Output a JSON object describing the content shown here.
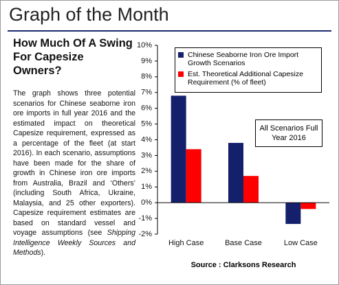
{
  "header": {
    "title": "Graph of the Month"
  },
  "article": {
    "heading": "How Much Of A Swing For Capesize Owners?",
    "body": [
      "The graph shows three potential scenarios for Chinese seaborne iron ore imports in full year 2016 and the estimated impact on theoretical Capesize requirement, expressed as a percentage of the fleet (at start 2016). In each scenario, assumptions have been made for the share of growth in Chinese iron ore imports from Australia, Brazil and ‘Others’ (including South Africa, Ukraine, Malaysia, and 25 other exporters). Capesize requirement estimates are based on standard vessel and voyage assumptions (see ",
      "Shipping Intelligence Weekly Sources and Methods",
      ")."
    ]
  },
  "chart_data": {
    "type": "bar",
    "categories": [
      "High Case",
      "Base Case",
      "Low Case"
    ],
    "series": [
      {
        "name": "Chinese Seaborne Iron Ore Import Growth Scenarios",
        "color": "#14206b",
        "values": [
          6.8,
          3.8,
          -1.35
        ]
      },
      {
        "name": "Est. Theoretical Additional Capesize Requirement (% of fleet)",
        "color": "#ff0000",
        "values": [
          3.4,
          1.7,
          -0.4
        ]
      }
    ],
    "ylim": [
      -2,
      10
    ],
    "yticks": [
      {
        "value": -2,
        "label": "-2%"
      },
      {
        "value": -1,
        "label": "-1%"
      },
      {
        "value": 0,
        "label": "0%"
      },
      {
        "value": 1,
        "label": "1%"
      },
      {
        "value": 2,
        "label": "2%"
      },
      {
        "value": 3,
        "label": "3%"
      },
      {
        "value": 4,
        "label": "4%"
      },
      {
        "value": 5,
        "label": "5%"
      },
      {
        "value": 6,
        "label": "6%"
      },
      {
        "value": 7,
        "label": "7%"
      },
      {
        "value": 8,
        "label": "8%"
      },
      {
        "value": 9,
        "label": "9%"
      },
      {
        "value": 10,
        "label": "10%"
      }
    ],
    "grid": false,
    "annotation": "All Scenarios Full Year 2016",
    "source": "Source : Clarksons Research"
  }
}
